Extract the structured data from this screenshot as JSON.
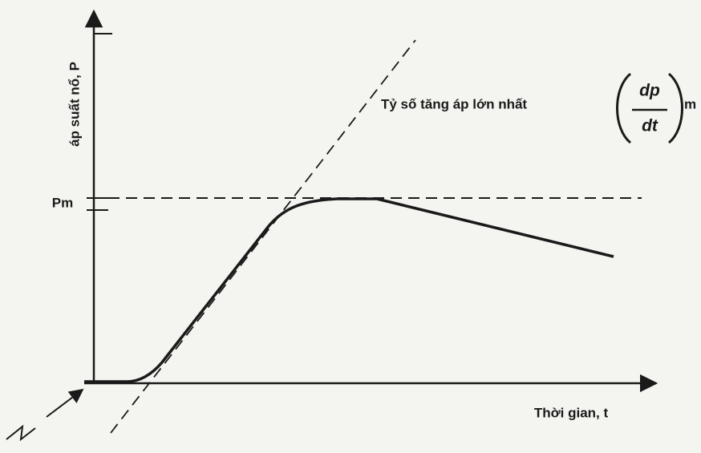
{
  "y_axis_label": "áp suất nổ, P",
  "x_axis_label": "Thời gian, t",
  "pmax_label": "Pm",
  "annotation": {
    "text": "Tỷ số tăng áp lớn nhất",
    "numerator": "dp",
    "denominator": "dt",
    "subscript": "m"
  }
}
